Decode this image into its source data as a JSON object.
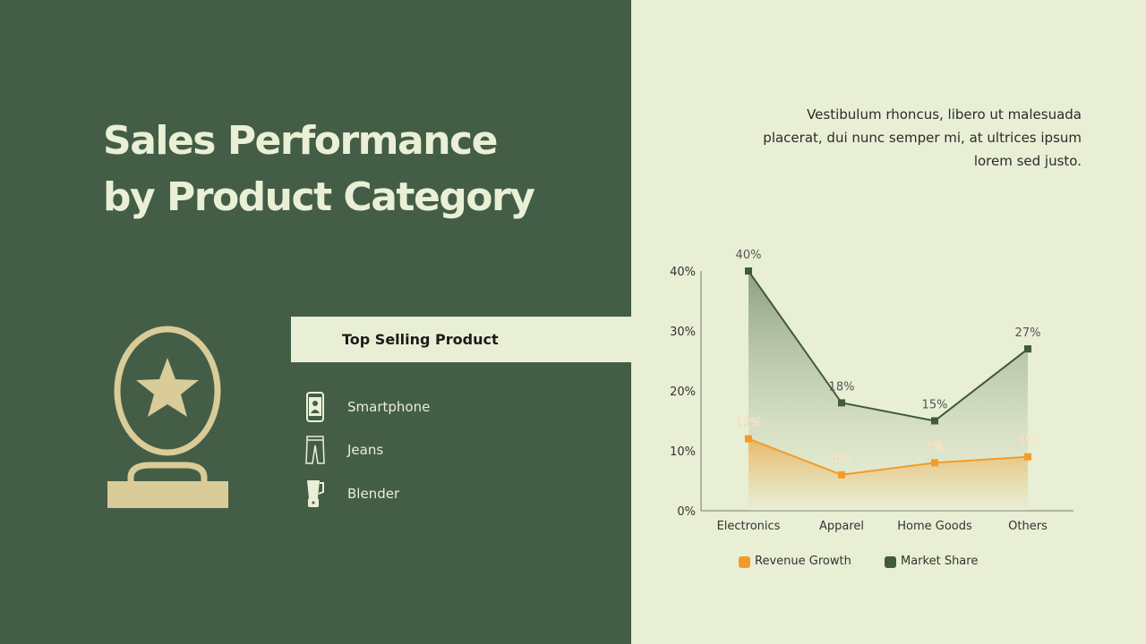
{
  "title_line1": "Sales Performance",
  "title_line2": "by Product Category",
  "description": "Vestibulum rhoncus, libero ut malesuada placerat, dui nunc semper mi, at ultrices ipsum lorem sed justo.",
  "top_selling": {
    "heading": "Top Selling Product",
    "items": [
      {
        "label": "Smartphone",
        "icon": "smartphone-icon"
      },
      {
        "label": "Jeans",
        "icon": "jeans-icon"
      },
      {
        "label": "Blender",
        "icon": "blender-icon"
      }
    ]
  },
  "colors": {
    "left_bg": "#445d47",
    "right_bg": "#e8efd4",
    "accent": "#d9cc98",
    "revenue": "#f39b2a",
    "market": "#405a3e"
  },
  "chart_data": {
    "type": "area",
    "categories": [
      "Electronics",
      "Apparel",
      "Home Goods",
      "Others"
    ],
    "ylim": [
      0,
      40
    ],
    "yticks": [
      "0%",
      "10%",
      "20%",
      "30%",
      "40%"
    ],
    "series": [
      {
        "name": "Revenue Growth",
        "values": [
          12,
          6,
          8,
          9
        ],
        "labels": [
          "12%",
          "6%",
          "8%",
          "9%"
        ],
        "color": "#f39b2a"
      },
      {
        "name": "Market Share",
        "values": [
          40,
          18,
          15,
          27
        ],
        "labels": [
          "40%",
          "18%",
          "15%",
          "27%"
        ],
        "color": "#405a3e"
      }
    ],
    "legend": "bottom",
    "grid": false
  }
}
